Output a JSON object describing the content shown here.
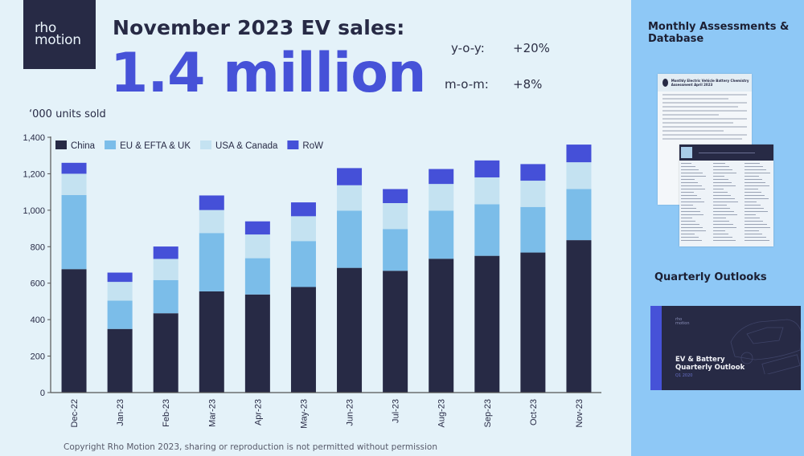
{
  "logo": {
    "line1": "rho",
    "line2": "motion"
  },
  "header": {
    "headline": "November 2023 EV sales:",
    "big_number": "1.4 million"
  },
  "stats": [
    {
      "label": "y-o-y:",
      "value": "+20%"
    },
    {
      "label": "m-o-m:",
      "value": "+8%"
    }
  ],
  "units_label": "‘000 units sold",
  "copyright": "Copyright Rho Motion 2023,  sharing or reproduction is not permitted  without permission",
  "sidebar": {
    "section1_title_line1": "Monthly Assessments &",
    "section1_title_line2": "Database",
    "doc1_title": "Monthly Electric Vehicle Battery Chemistry Assessment April 2023",
    "section2_title": "Quarterly Outlooks",
    "outlook_brand_line1": "rho",
    "outlook_brand_line2": "motion",
    "outlook_title_line1": "EV & Battery",
    "outlook_title_line2": "Quarterly Outlook",
    "outlook_period": "Q1 2020"
  },
  "colors": {
    "background": "#e4f2f9",
    "sidebar": "#8ec8f6",
    "accent": "#4652d8",
    "dark": "#272a45"
  },
  "chart_data": {
    "type": "bar",
    "stacked": true,
    "title": "November 2023 EV sales",
    "xlabel": "",
    "ylabel": "'000 units sold",
    "ylim": [
      0,
      1400
    ],
    "yticks": [
      0,
      200,
      400,
      600,
      800,
      1000,
      1200,
      1400
    ],
    "ytick_labels": [
      "0",
      "200",
      "400",
      "600",
      "800",
      "1,000",
      "1,200",
      "1,400"
    ],
    "grid": false,
    "legend_position": "top-left",
    "categories": [
      "Dec-22",
      "Jan-23",
      "Feb-23",
      "Mar-23",
      "Apr-23",
      "May-23",
      "Jun-23",
      "Jul-23",
      "Aug-23",
      "Sep-23",
      "Oct-23",
      "Nov-23"
    ],
    "series": [
      {
        "name": "China",
        "color": "#272a45",
        "values": [
          677,
          349,
          435,
          555,
          538,
          579,
          684,
          668,
          734,
          750,
          768,
          836
        ]
      },
      {
        "name": "EU & EFTA & UK",
        "color": "#7bbde9",
        "values": [
          406,
          155,
          182,
          320,
          199,
          252,
          314,
          229,
          264,
          283,
          250,
          280
        ]
      },
      {
        "name": "USA & Canada",
        "color": "#c4e2f1",
        "values": [
          117,
          103,
          116,
          126,
          130,
          136,
          139,
          142,
          146,
          147,
          144,
          147
        ]
      },
      {
        "name": "RoW",
        "color": "#4550d8",
        "values": [
          60,
          51,
          68,
          80,
          72,
          76,
          94,
          77,
          82,
          93,
          91,
          97
        ]
      }
    ]
  }
}
